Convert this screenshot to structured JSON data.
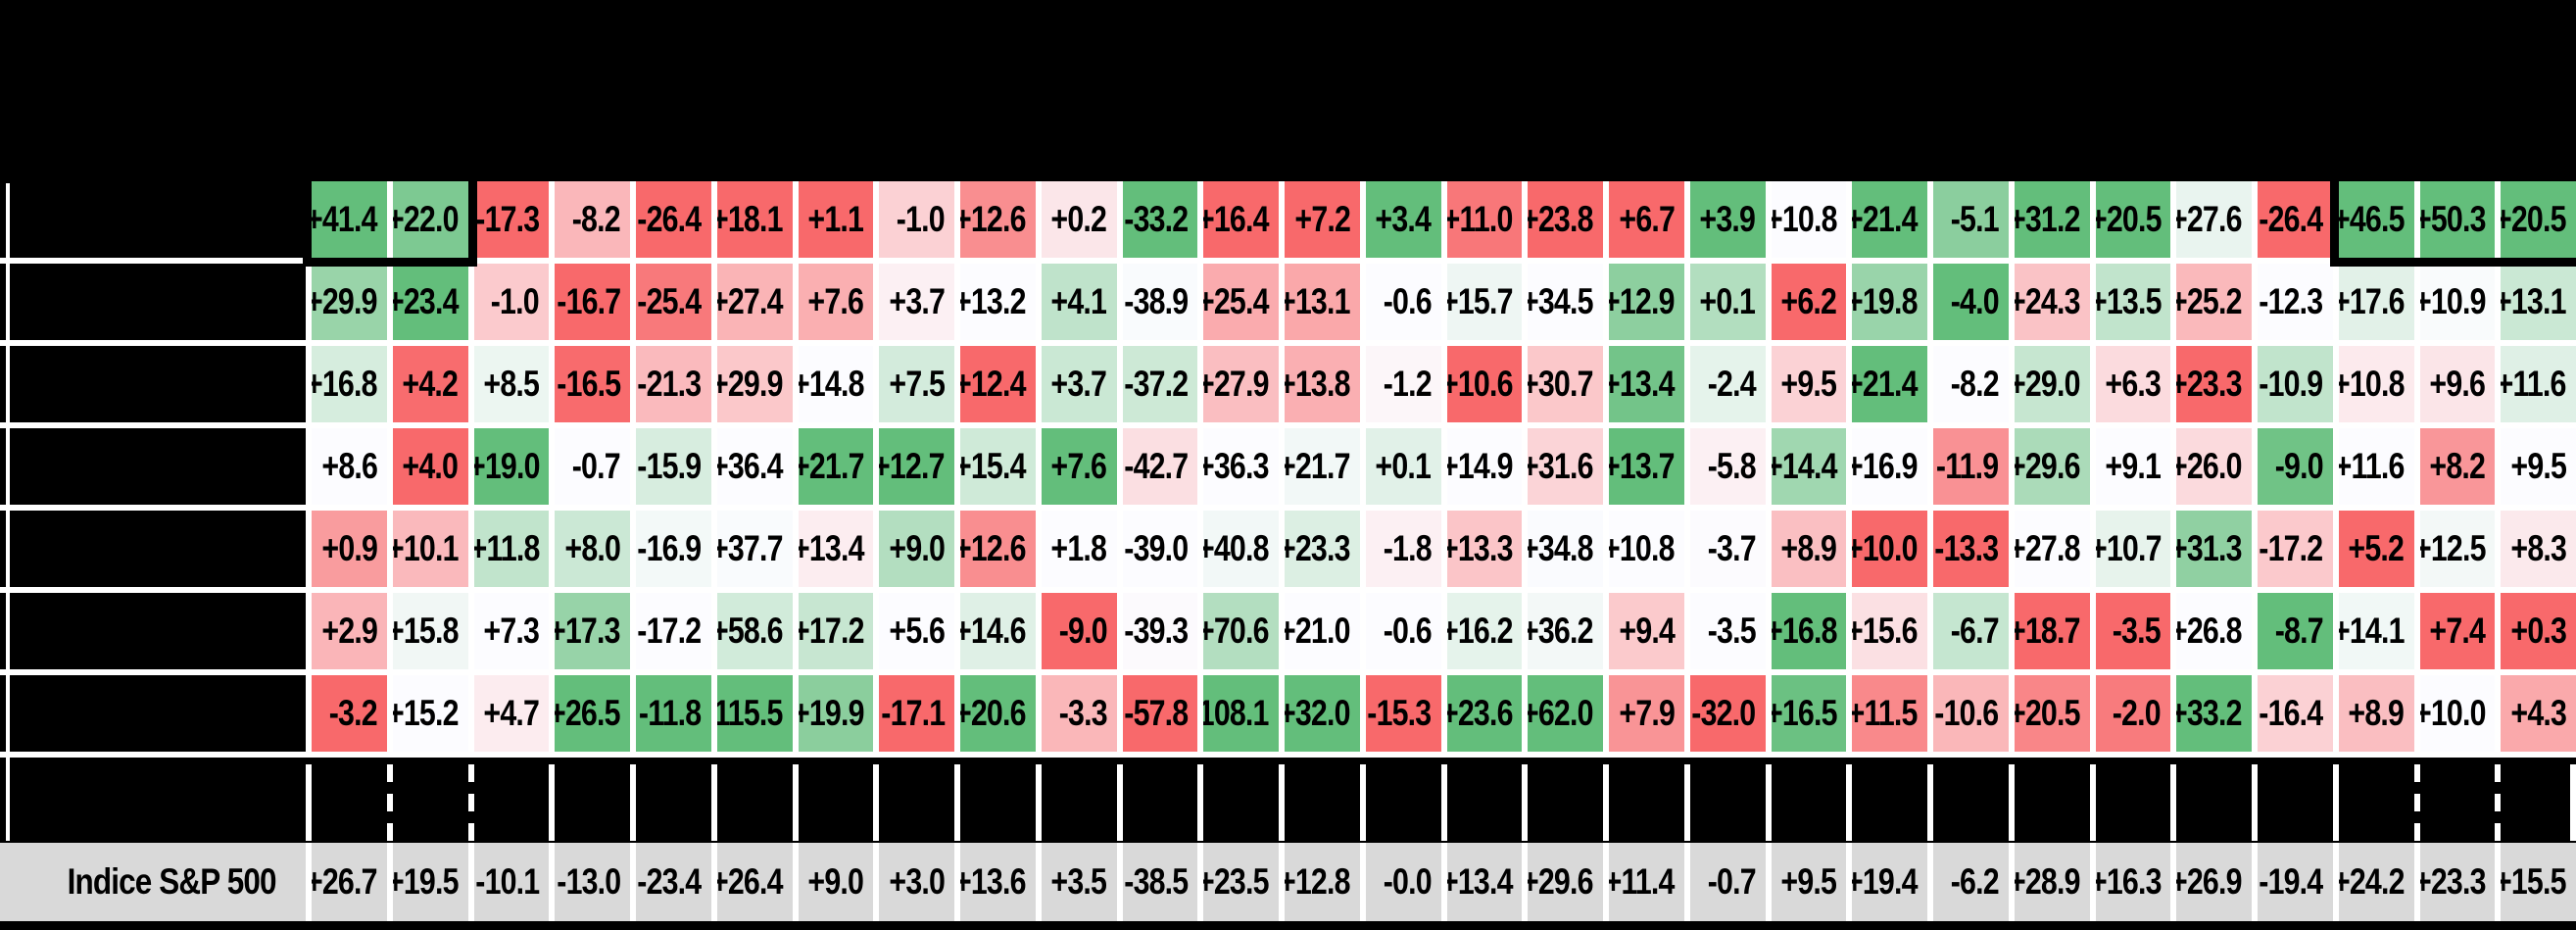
{
  "header": {
    "title_visible": false,
    "note": "title band is fully blacked out in the screenshot"
  },
  "colors": {
    "background": "#000000",
    "gridline": "#FFFFFF",
    "footer_bg": "#D9D9D9",
    "cell_text": "#000000",
    "scale_min": "#F8696B",
    "scale_mid": "#FCFCFF",
    "scale_max": "#63BE7B"
  },
  "chart_data": {
    "type": "heatmap",
    "title": "",
    "num_columns": 28,
    "column_labels_visible": false,
    "row_labels_visible": false,
    "color_scale": {
      "min_color": "#F8696B",
      "mid_color": "#FCFCFF",
      "max_color": "#63BE7B",
      "scope": "per-column",
      "midpoint": "median"
    },
    "rows": [
      {
        "label": "",
        "values": [
          "+41.4",
          "+22.0",
          "-17.3",
          "-8.2",
          "-26.4",
          "+18.1",
          "+1.1",
          "-1.0",
          "+12.6",
          "+0.2",
          "-33.2",
          "+16.4",
          "+7.2",
          "+3.4",
          "+11.0",
          "+23.8",
          "+6.7",
          "+3.9",
          "+10.8",
          "+21.4",
          "-5.1",
          "+31.2",
          "+20.5",
          "+27.6",
          "-26.4",
          "+46.5",
          "+50.3",
          "+20.5"
        ]
      },
      {
        "label": "",
        "values": [
          "+29.9",
          "+23.4",
          "-1.0",
          "-16.7",
          "-25.4",
          "+27.4",
          "+7.6",
          "+3.7",
          "+13.2",
          "+4.1",
          "-38.9",
          "+25.4",
          "+13.1",
          "-0.6",
          "+15.7",
          "+34.5",
          "+12.9",
          "+0.1",
          "+6.2",
          "+19.8",
          "-4.0",
          "+24.3",
          "+13.5",
          "+25.2",
          "-12.3",
          "+17.6",
          "+10.9",
          "+13.1"
        ]
      },
      {
        "label": "",
        "values": [
          "+16.8",
          "+4.2",
          "+8.5",
          "-16.5",
          "-21.3",
          "+29.9",
          "+14.8",
          "+7.5",
          "+12.4",
          "+3.7",
          "-37.2",
          "+27.9",
          "+13.8",
          "-1.2",
          "+10.6",
          "+30.7",
          "+13.4",
          "-2.4",
          "+9.5",
          "+21.4",
          "-8.2",
          "+29.0",
          "+6.3",
          "+23.3",
          "-10.9",
          "+10.8",
          "+9.6",
          "+11.6"
        ]
      },
      {
        "label": "",
        "values": [
          "+8.6",
          "+4.0",
          "+19.0",
          "-0.7",
          "-15.9",
          "+36.4",
          "+21.7",
          "+12.7",
          "+15.4",
          "+7.6",
          "-42.7",
          "+36.3",
          "+21.7",
          "+0.1",
          "+14.9",
          "+31.6",
          "+13.7",
          "-5.8",
          "+14.4",
          "+16.9",
          "-11.9",
          "+29.6",
          "+9.1",
          "+26.0",
          "-9.0",
          "+11.6",
          "+8.2",
          "+9.5"
        ]
      },
      {
        "label": "",
        "values": [
          "+0.9",
          "+10.1",
          "+11.8",
          "+8.0",
          "-16.9",
          "+37.7",
          "+13.4",
          "+9.0",
          "+12.6",
          "+1.8",
          "-39.0",
          "+40.8",
          "+23.3",
          "-1.8",
          "+13.3",
          "+34.8",
          "+10.8",
          "-3.7",
          "+8.9",
          "+10.0",
          "-13.3",
          "+27.8",
          "+10.7",
          "+31.3",
          "-17.2",
          "+5.2",
          "+12.5",
          "+8.3"
        ]
      },
      {
        "label": "",
        "values": [
          "+2.9",
          "+15.8",
          "+7.3",
          "+17.3",
          "-17.2",
          "+58.6",
          "+17.2",
          "+5.6",
          "+14.6",
          "-9.0",
          "-39.3",
          "+70.6",
          "+21.0",
          "-0.6",
          "+16.2",
          "+36.2",
          "+9.4",
          "-3.5",
          "+16.8",
          "+15.6",
          "-6.7",
          "+18.7",
          "-3.5",
          "+26.8",
          "-8.7",
          "+14.1",
          "+7.4",
          "+0.3"
        ]
      },
      {
        "label": "",
        "values": [
          "-3.2",
          "+15.2",
          "+4.7",
          "+26.5",
          "-11.8",
          "115.5",
          "+19.9",
          "-17.1",
          "+20.6",
          "-3.3",
          "-57.8",
          "108.1",
          "+32.0",
          "-15.3",
          "+23.6",
          "+62.0",
          "+7.9",
          "-32.0",
          "+16.5",
          "+11.5",
          "-10.6",
          "+20.5",
          "-2.0",
          "+33.2",
          "-16.4",
          "+8.9",
          "+10.0",
          "+4.3"
        ]
      }
    ],
    "footer_row": {
      "label": "Indice S&P 500",
      "values": [
        "+26.7",
        "+19.5",
        "-10.1",
        "-13.0",
        "-23.4",
        "+26.4",
        "+9.0",
        "+3.0",
        "+13.6",
        "+3.5",
        "-38.5",
        "+23.5",
        "+12.8",
        "-0.0",
        "+13.4",
        "+29.6",
        "+11.4",
        "-0.7",
        "+9.5",
        "+19.4",
        "-6.2",
        "+28.9",
        "+16.3",
        "+26.9",
        "-19.4",
        "+24.2",
        "+23.3",
        "+15.5"
      ]
    },
    "highlights": [
      {
        "row": 0,
        "cols": [
          0,
          1
        ]
      },
      {
        "row": 0,
        "cols": [
          25,
          26,
          27
        ]
      }
    ],
    "separator_row": {
      "dashed_tick_boundaries": [
        1,
        2,
        26,
        27
      ]
    }
  }
}
